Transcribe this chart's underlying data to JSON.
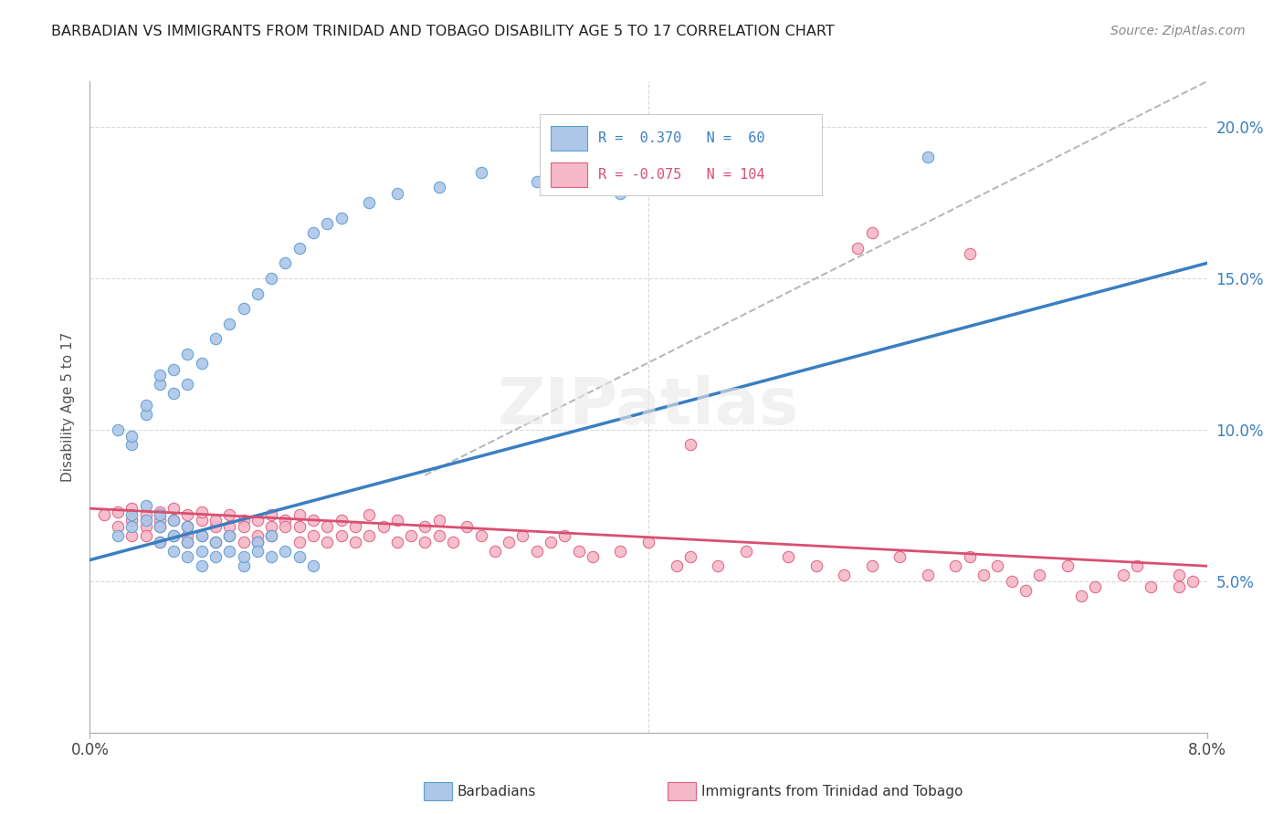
{
  "title": "BARBADIAN VS IMMIGRANTS FROM TRINIDAD AND TOBAGO DISABILITY AGE 5 TO 17 CORRELATION CHART",
  "source": "Source: ZipAtlas.com",
  "ylabel": "Disability Age 5 to 17",
  "y_ticks": [
    0.05,
    0.1,
    0.15,
    0.2
  ],
  "y_tick_labels": [
    "5.0%",
    "10.0%",
    "15.0%",
    "20.0%"
  ],
  "xlim": [
    0.0,
    0.08
  ],
  "ylim": [
    0.0,
    0.215
  ],
  "barbadian_color": "#aec6e8",
  "trinidad_color": "#f5b8c8",
  "barbadian_edge_color": "#5a9fd4",
  "trinidad_edge_color": "#e06080",
  "barbadian_line_color": "#3a7fc1",
  "trinidad_line_color": "#d94f70",
  "dashed_line_color": "#b8b8b8",
  "barbadian_R": 0.37,
  "barbadian_N": 60,
  "trinidad_R": -0.075,
  "trinidad_N": 104,
  "barb_line_x0": 0.0,
  "barb_line_y0": 0.057,
  "barb_line_x1": 0.08,
  "barb_line_y1": 0.155,
  "trin_line_x0": 0.0,
  "trin_line_y0": 0.074,
  "trin_line_x1": 0.08,
  "trin_line_y1": 0.055,
  "dash_line_x0": 0.024,
  "dash_line_y0": 0.085,
  "dash_line_x1": 0.08,
  "dash_line_y1": 0.215,
  "barbadian_x": [
    0.002,
    0.003,
    0.003,
    0.004,
    0.004,
    0.005,
    0.005,
    0.005,
    0.006,
    0.006,
    0.006,
    0.007,
    0.007,
    0.007,
    0.008,
    0.008,
    0.008,
    0.009,
    0.009,
    0.01,
    0.01,
    0.011,
    0.011,
    0.012,
    0.012,
    0.013,
    0.013,
    0.014,
    0.015,
    0.016,
    0.002,
    0.003,
    0.003,
    0.004,
    0.004,
    0.005,
    0.005,
    0.006,
    0.006,
    0.007,
    0.007,
    0.008,
    0.009,
    0.01,
    0.011,
    0.012,
    0.013,
    0.014,
    0.015,
    0.016,
    0.017,
    0.018,
    0.02,
    0.022,
    0.025,
    0.028,
    0.032,
    0.038,
    0.05,
    0.06
  ],
  "barbadian_y": [
    0.065,
    0.068,
    0.072,
    0.07,
    0.075,
    0.063,
    0.068,
    0.072,
    0.06,
    0.065,
    0.07,
    0.058,
    0.063,
    0.068,
    0.055,
    0.06,
    0.065,
    0.058,
    0.063,
    0.06,
    0.065,
    0.055,
    0.058,
    0.063,
    0.06,
    0.058,
    0.065,
    0.06,
    0.058,
    0.055,
    0.1,
    0.095,
    0.098,
    0.105,
    0.108,
    0.115,
    0.118,
    0.112,
    0.12,
    0.115,
    0.125,
    0.122,
    0.13,
    0.135,
    0.14,
    0.145,
    0.15,
    0.155,
    0.16,
    0.165,
    0.168,
    0.17,
    0.175,
    0.178,
    0.18,
    0.185,
    0.182,
    0.178,
    0.185,
    0.19
  ],
  "trinidad_x": [
    0.001,
    0.002,
    0.002,
    0.003,
    0.003,
    0.003,
    0.004,
    0.004,
    0.004,
    0.005,
    0.005,
    0.005,
    0.005,
    0.006,
    0.006,
    0.006,
    0.007,
    0.007,
    0.007,
    0.007,
    0.008,
    0.008,
    0.008,
    0.009,
    0.009,
    0.009,
    0.01,
    0.01,
    0.01,
    0.011,
    0.011,
    0.011,
    0.012,
    0.012,
    0.012,
    0.013,
    0.013,
    0.013,
    0.014,
    0.014,
    0.015,
    0.015,
    0.015,
    0.016,
    0.016,
    0.017,
    0.017,
    0.018,
    0.018,
    0.019,
    0.019,
    0.02,
    0.02,
    0.021,
    0.022,
    0.022,
    0.023,
    0.024,
    0.024,
    0.025,
    0.025,
    0.026,
    0.027,
    0.028,
    0.029,
    0.03,
    0.031,
    0.032,
    0.033,
    0.034,
    0.035,
    0.036,
    0.038,
    0.04,
    0.042,
    0.043,
    0.045,
    0.047,
    0.05,
    0.052,
    0.054,
    0.056,
    0.058,
    0.06,
    0.062,
    0.063,
    0.064,
    0.065,
    0.066,
    0.068,
    0.07,
    0.072,
    0.074,
    0.075,
    0.076,
    0.078,
    0.078,
    0.079,
    0.043,
    0.055,
    0.056,
    0.063,
    0.067,
    0.071
  ],
  "trinidad_y": [
    0.072,
    0.068,
    0.073,
    0.07,
    0.065,
    0.074,
    0.068,
    0.072,
    0.065,
    0.07,
    0.063,
    0.068,
    0.073,
    0.065,
    0.07,
    0.074,
    0.063,
    0.068,
    0.072,
    0.065,
    0.07,
    0.065,
    0.073,
    0.068,
    0.063,
    0.07,
    0.065,
    0.072,
    0.068,
    0.063,
    0.07,
    0.068,
    0.065,
    0.07,
    0.063,
    0.068,
    0.072,
    0.065,
    0.07,
    0.068,
    0.063,
    0.068,
    0.072,
    0.065,
    0.07,
    0.063,
    0.068,
    0.065,
    0.07,
    0.063,
    0.068,
    0.065,
    0.072,
    0.068,
    0.063,
    0.07,
    0.065,
    0.063,
    0.068,
    0.07,
    0.065,
    0.063,
    0.068,
    0.065,
    0.06,
    0.063,
    0.065,
    0.06,
    0.063,
    0.065,
    0.06,
    0.058,
    0.06,
    0.063,
    0.055,
    0.058,
    0.055,
    0.06,
    0.058,
    0.055,
    0.052,
    0.055,
    0.058,
    0.052,
    0.055,
    0.058,
    0.052,
    0.055,
    0.05,
    0.052,
    0.055,
    0.048,
    0.052,
    0.055,
    0.048,
    0.052,
    0.048,
    0.05,
    0.095,
    0.16,
    0.165,
    0.158,
    0.047,
    0.045
  ]
}
